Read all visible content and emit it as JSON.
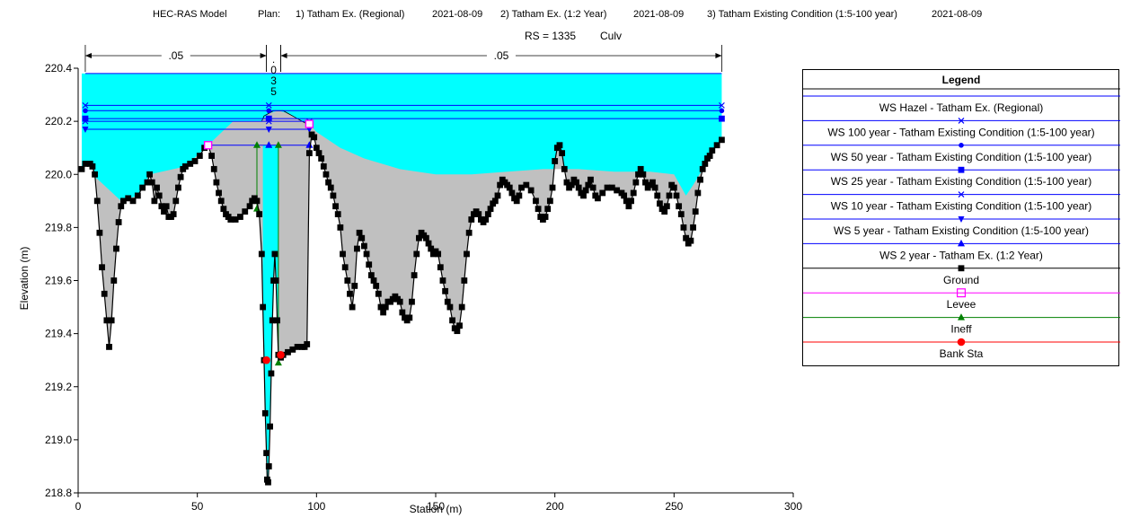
{
  "header": {
    "model": "HEC-RAS Model",
    "plan_label": "Plan:",
    "plan1": "1) Tatham Ex. (Regional)",
    "plan1_date": "2021-08-09",
    "plan2": "2) Tatham Ex. (1:2 Year)",
    "plan2_date": "2021-08-09",
    "plan3": "3) Tatham Existing Condition (1:5-100 year)",
    "plan3_date": "2021-08-09",
    "rs": "RS = 1335",
    "culv": "Culv"
  },
  "chart_data": {
    "type": "line",
    "xlabel": "Station (m)",
    "ylabel": "Elevation (m)",
    "xlim": [
      0,
      300
    ],
    "ylim": [
      218.8,
      220.4
    ],
    "xticks": [
      "0",
      "50",
      "100",
      "150",
      "200",
      "250",
      "300"
    ],
    "yticks": [
      "218.8",
      "219.0",
      "219.2",
      "219.4",
      "219.6",
      "219.8",
      "220.0",
      "220.2",
      "220.4"
    ],
    "manning": [
      {
        "label": ".05",
        "from": 3,
        "to": 79
      },
      {
        "label": ".035",
        "from": 79,
        "to": 85
      },
      {
        "label": ".05",
        "from": 85,
        "to": 270
      }
    ],
    "ground": [
      [
        1.5,
        220.02
      ],
      [
        3,
        220.04
      ],
      [
        5,
        220.04
      ],
      [
        6,
        220.03
      ],
      [
        7,
        220.0
      ],
      [
        8,
        219.9
      ],
      [
        9,
        219.78
      ],
      [
        10,
        219.65
      ],
      [
        11,
        219.55
      ],
      [
        12,
        219.45
      ],
      [
        13,
        219.35
      ],
      [
        14,
        219.45
      ],
      [
        15,
        219.6
      ],
      [
        16,
        219.72
      ],
      [
        17,
        219.82
      ],
      [
        18,
        219.88
      ],
      [
        19,
        219.9
      ],
      [
        21,
        219.91
      ],
      [
        23,
        219.9
      ],
      [
        25,
        219.92
      ],
      [
        27,
        219.95
      ],
      [
        29,
        219.97
      ],
      [
        30,
        220.0
      ],
      [
        31,
        219.97
      ],
      [
        32,
        219.9
      ],
      [
        33,
        219.95
      ],
      [
        34,
        219.92
      ],
      [
        35,
        219.88
      ],
      [
        36,
        219.86
      ],
      [
        37,
        219.88
      ],
      [
        38,
        219.84
      ],
      [
        39,
        219.84
      ],
      [
        40,
        219.85
      ],
      [
        41,
        219.9
      ],
      [
        42,
        219.95
      ],
      [
        43,
        219.99
      ],
      [
        44,
        220.02
      ],
      [
        45,
        220.03
      ],
      [
        47,
        220.04
      ],
      [
        49,
        220.05
      ],
      [
        51,
        220.07
      ],
      [
        53,
        220.1
      ],
      [
        54.5,
        220.11
      ],
      [
        56,
        220.07
      ],
      [
        57,
        220.02
      ],
      [
        58,
        219.97
      ],
      [
        59,
        219.93
      ],
      [
        60,
        219.9
      ],
      [
        61,
        219.87
      ],
      [
        62,
        219.85
      ],
      [
        63,
        219.84
      ],
      [
        64,
        219.83
      ],
      [
        66,
        219.83
      ],
      [
        68,
        219.84
      ],
      [
        70,
        219.86
      ],
      [
        72,
        219.88
      ],
      [
        73,
        219.9
      ],
      [
        74,
        219.91
      ],
      [
        75,
        219.9
      ],
      [
        76,
        219.85
      ],
      [
        77,
        219.7
      ],
      [
        77.5,
        219.5
      ],
      [
        78,
        219.3
      ],
      [
        78.5,
        219.1
      ],
      [
        79,
        218.95
      ],
      [
        79.3,
        218.85
      ],
      [
        79.7,
        218.84
      ],
      [
        80,
        218.9
      ],
      [
        80.5,
        219.05
      ],
      [
        81,
        219.25
      ],
      [
        81.5,
        219.45
      ],
      [
        82,
        219.6
      ],
      [
        82.5,
        219.7
      ],
      [
        83,
        219.6
      ],
      [
        83.5,
        219.45
      ],
      [
        84,
        219.32
      ],
      [
        85,
        219.31
      ],
      [
        86,
        219.32
      ],
      [
        88,
        219.33
      ],
      [
        90,
        219.34
      ],
      [
        92,
        219.35
      ],
      [
        94,
        219.35
      ],
      [
        95,
        219.35
      ],
      [
        96,
        219.36
      ],
      [
        97,
        220.08
      ],
      [
        98,
        220.15
      ],
      [
        99,
        220.14
      ],
      [
        100,
        220.1
      ],
      [
        101,
        220.08
      ],
      [
        102,
        220.06
      ],
      [
        103,
        220.03
      ],
      [
        104,
        220.0
      ],
      [
        105,
        219.97
      ],
      [
        106,
        219.95
      ],
      [
        107,
        219.92
      ],
      [
        108,
        219.88
      ],
      [
        109,
        219.85
      ],
      [
        110,
        219.8
      ],
      [
        111,
        219.7
      ],
      [
        112,
        219.65
      ],
      [
        113,
        219.6
      ],
      [
        114,
        219.55
      ],
      [
        115,
        219.5
      ],
      [
        116,
        219.58
      ],
      [
        117,
        219.72
      ],
      [
        118,
        219.78
      ],
      [
        119,
        219.76
      ],
      [
        120,
        219.73
      ],
      [
        121,
        219.7
      ],
      [
        122,
        219.66
      ],
      [
        123,
        219.62
      ],
      [
        124,
        219.6
      ],
      [
        125,
        219.58
      ],
      [
        126,
        219.55
      ],
      [
        127,
        219.5
      ],
      [
        128,
        219.48
      ],
      [
        129,
        219.5
      ],
      [
        130,
        219.52
      ],
      [
        131,
        219.52
      ],
      [
        132,
        219.53
      ],
      [
        133,
        219.54
      ],
      [
        134,
        219.53
      ],
      [
        135,
        219.52
      ],
      [
        136,
        219.48
      ],
      [
        137,
        219.46
      ],
      [
        138,
        219.45
      ],
      [
        139,
        219.46
      ],
      [
        140,
        219.52
      ],
      [
        141,
        219.62
      ],
      [
        142,
        219.7
      ],
      [
        143,
        219.76
      ],
      [
        144,
        219.78
      ],
      [
        145,
        219.77
      ],
      [
        146,
        219.76
      ],
      [
        147,
        219.74
      ],
      [
        148,
        219.72
      ],
      [
        149,
        219.7
      ],
      [
        150,
        219.71
      ],
      [
        151,
        219.7
      ],
      [
        152,
        219.65
      ],
      [
        153,
        219.6
      ],
      [
        154,
        219.56
      ],
      [
        155,
        219.52
      ],
      [
        156,
        219.5
      ],
      [
        157,
        219.45
      ],
      [
        158,
        219.42
      ],
      [
        159,
        219.41
      ],
      [
        160,
        219.43
      ],
      [
        161,
        219.5
      ],
      [
        162,
        219.6
      ],
      [
        163,
        219.7
      ],
      [
        164,
        219.78
      ],
      [
        165,
        219.83
      ],
      [
        166,
        219.85
      ],
      [
        167,
        219.86
      ],
      [
        168,
        219.85
      ],
      [
        169,
        219.83
      ],
      [
        170,
        219.82
      ],
      [
        171,
        219.83
      ],
      [
        172,
        219.85
      ],
      [
        173,
        219.87
      ],
      [
        174,
        219.89
      ],
      [
        175,
        219.9
      ],
      [
        176,
        219.92
      ],
      [
        177,
        219.96
      ],
      [
        178,
        219.98
      ],
      [
        179,
        219.97
      ],
      [
        180,
        219.96
      ],
      [
        181,
        219.95
      ],
      [
        182,
        219.93
      ],
      [
        183,
        219.91
      ],
      [
        184,
        219.9
      ],
      [
        185,
        219.92
      ],
      [
        186,
        219.95
      ],
      [
        188,
        219.96
      ],
      [
        190,
        219.94
      ],
      [
        192,
        219.9
      ],
      [
        193,
        219.87
      ],
      [
        194,
        219.84
      ],
      [
        195,
        219.83
      ],
      [
        196,
        219.84
      ],
      [
        197,
        219.87
      ],
      [
        198,
        219.9
      ],
      [
        199,
        219.95
      ],
      [
        200,
        220.05
      ],
      [
        201,
        220.1
      ],
      [
        202,
        220.11
      ],
      [
        203,
        220.08
      ],
      [
        204,
        220.02
      ],
      [
        205,
        219.97
      ],
      [
        206,
        219.95
      ],
      [
        207,
        219.96
      ],
      [
        208,
        219.98
      ],
      [
        209,
        219.97
      ],
      [
        210,
        219.95
      ],
      [
        211,
        219.93
      ],
      [
        212,
        219.92
      ],
      [
        213,
        219.94
      ],
      [
        214,
        219.96
      ],
      [
        215,
        219.98
      ],
      [
        216,
        219.95
      ],
      [
        217,
        219.92
      ],
      [
        218,
        219.91
      ],
      [
        220,
        219.93
      ],
      [
        222,
        219.95
      ],
      [
        224,
        219.95
      ],
      [
        226,
        219.94
      ],
      [
        228,
        219.93
      ],
      [
        229,
        219.92
      ],
      [
        230,
        219.9
      ],
      [
        231,
        219.88
      ],
      [
        232,
        219.9
      ],
      [
        233,
        219.93
      ],
      [
        234,
        219.97
      ],
      [
        235,
        220.0
      ],
      [
        236,
        220.02
      ],
      [
        237,
        220.0
      ],
      [
        238,
        219.97
      ],
      [
        239,
        219.95
      ],
      [
        240,
        219.96
      ],
      [
        241,
        219.97
      ],
      [
        242,
        219.95
      ],
      [
        243,
        219.92
      ],
      [
        244,
        219.89
      ],
      [
        245,
        219.87
      ],
      [
        246,
        219.86
      ],
      [
        247,
        219.88
      ],
      [
        248,
        219.92
      ],
      [
        249,
        219.96
      ],
      [
        250,
        219.95
      ],
      [
        251,
        219.92
      ],
      [
        252,
        219.88
      ],
      [
        253,
        219.85
      ],
      [
        254,
        219.8
      ],
      [
        255,
        219.76
      ],
      [
        256,
        219.74
      ],
      [
        257,
        219.75
      ],
      [
        258,
        219.8
      ],
      [
        259,
        219.86
      ],
      [
        260,
        219.93
      ],
      [
        261,
        219.98
      ],
      [
        262,
        220.02
      ],
      [
        263,
        220.04
      ],
      [
        264,
        220.06
      ],
      [
        265,
        220.07
      ],
      [
        266,
        220.09
      ],
      [
        268,
        220.11
      ],
      [
        270,
        220.13
      ]
    ],
    "deck": [
      [
        77,
        220.2
      ],
      [
        78,
        220.22
      ],
      [
        80,
        220.23
      ],
      [
        82,
        220.24
      ],
      [
        84,
        220.24
      ],
      [
        86,
        220.24
      ],
      [
        88,
        220.23
      ],
      [
        90,
        220.22
      ],
      [
        92,
        220.21
      ],
      [
        94,
        220.2
      ],
      [
        96,
        220.19
      ],
      [
        97,
        220.19
      ]
    ],
    "water_surfaces": [
      {
        "name": "WS Hazel - Tatham Ex. (Regional)",
        "y": 220.38,
        "x1": 3,
        "x2": 270,
        "marker": "none"
      },
      {
        "name": "WS 100 year - Tatham Existing Condition (1:5-100 year)",
        "y": 220.26,
        "x1": 3,
        "x2": 270,
        "marker": "x"
      },
      {
        "name": "WS 50 year - Tatham Existing Condition (1:5-100 year)",
        "y": 220.24,
        "x1": 3,
        "x2": 270,
        "marker": "circle"
      },
      {
        "name": "WS 25 year - Tatham Existing Condition (1:5-100 year)",
        "y": 220.21,
        "x1": 3,
        "x2": 270,
        "marker": "square"
      },
      {
        "name": "WS 10 year - Tatham Existing Condition (1:5-100 year)",
        "y": 220.2,
        "x1": 3,
        "x2": 97,
        "marker": "x"
      },
      {
        "name": "WS 5 year - Tatham Existing Condition (1:5-100 year)",
        "y": 220.17,
        "x1": 3,
        "x2": 97,
        "marker": "triangle-down"
      },
      {
        "name": "WS 2 year - Tatham Ex. (1:2 Year)",
        "y": 220.11,
        "x1": 54.5,
        "x2": 97,
        "marker": "triangle"
      }
    ],
    "levee": [
      [
        54.5,
        220.11
      ],
      [
        97,
        220.19
      ]
    ],
    "ineff": [
      {
        "x": 75,
        "y_bottom": 219.87,
        "y_top": 220.11
      },
      {
        "x": 84,
        "y_bottom": 219.29,
        "y_top": 220.11
      }
    ],
    "bank_sta": [
      [
        79,
        219.3
      ],
      [
        85,
        219.32
      ]
    ]
  },
  "legend": {
    "title": "Legend",
    "items": [
      {
        "label": "WS Hazel - Tatham Ex. (Regional)",
        "color": "#0000ff",
        "marker": "none"
      },
      {
        "label": "WS 100 year - Tatham Existing Condition (1:5-100 year)",
        "color": "#0000ff",
        "marker": "x"
      },
      {
        "label": "WS 50 year - Tatham Existing Condition (1:5-100 year)",
        "color": "#0000ff",
        "marker": "circle"
      },
      {
        "label": "WS 25 year - Tatham Existing Condition (1:5-100 year)",
        "color": "#0000ff",
        "marker": "square"
      },
      {
        "label": "WS 10 year - Tatham Existing Condition (1:5-100 year)",
        "color": "#0000ff",
        "marker": "x"
      },
      {
        "label": "WS 5 year - Tatham Existing Condition (1:5-100 year)",
        "color": "#0000ff",
        "marker": "triangle-down"
      },
      {
        "label": "WS 2 year - Tatham Ex. (1:2 Year)",
        "color": "#0000ff",
        "marker": "triangle"
      },
      {
        "label": "Ground",
        "color": "#000000",
        "marker": "square"
      },
      {
        "label": "Levee",
        "color": "#ff00ff",
        "marker": "square-open"
      },
      {
        "label": "Ineff",
        "color": "#008000",
        "marker": "triangle"
      },
      {
        "label": "Bank Sta",
        "color": "#ff0000",
        "marker": "dot"
      }
    ]
  },
  "colors": {
    "water": "#00ffff",
    "ground_fill": "#c0c0c0",
    "ws_line": "#0000ff",
    "ground_line": "#000000",
    "levee": "#ff00ff",
    "ineff": "#008000",
    "bank": "#ff0000"
  }
}
